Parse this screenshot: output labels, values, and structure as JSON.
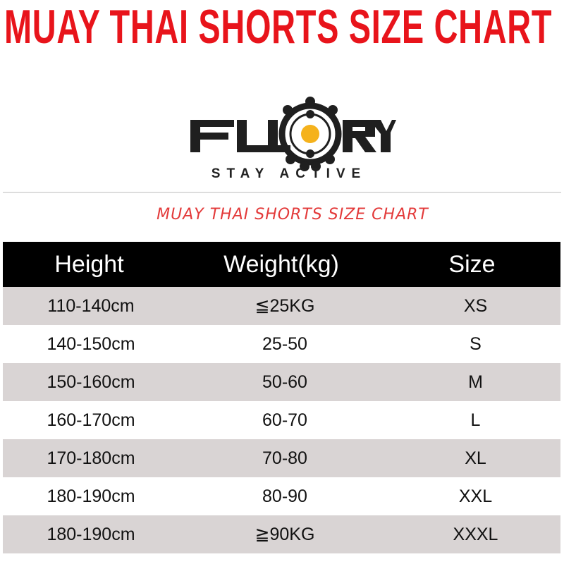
{
  "title": "MUAY THAI SHORTS SIZE CHART",
  "logo": {
    "text": "FLUORY",
    "tagline": "STAY ACTIVE",
    "accent": "#f5b21c"
  },
  "subtitle": "MUAY THAI SHORTS SIZE CHART",
  "table": {
    "headers": [
      "Height",
      "Weight(kg)",
      "Size"
    ],
    "rows": [
      [
        "110-140cm",
        "≦25KG",
        "XS"
      ],
      [
        "140-150cm",
        "25-50",
        "S"
      ],
      [
        "150-160cm",
        "50-60",
        "M"
      ],
      [
        "160-170cm",
        "60-70",
        "L"
      ],
      [
        "170-180cm",
        "70-80",
        "XL"
      ],
      [
        "180-190cm",
        "80-90",
        "XXL"
      ],
      [
        "180-190cm",
        "≧90KG",
        "XXXL"
      ]
    ]
  }
}
